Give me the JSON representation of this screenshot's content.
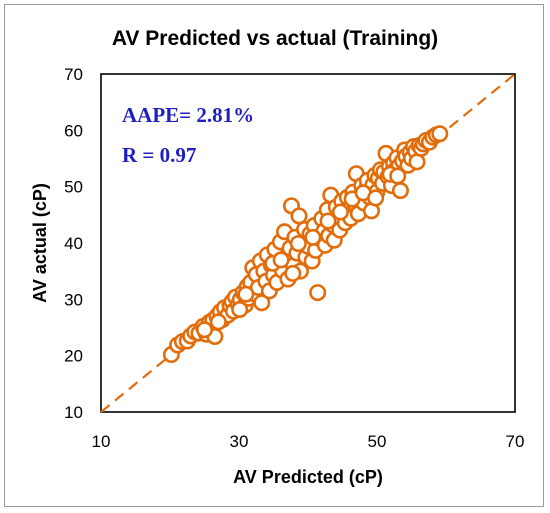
{
  "chart_data": {
    "type": "scatter",
    "title": "AV Predicted vs actual (Training)",
    "xlabel": "AV Predicted (cP)",
    "ylabel": "AV actual (cP)",
    "xlim": [
      10,
      70
    ],
    "ylim": [
      10,
      70
    ],
    "xticks": [
      "10",
      "30",
      "50",
      "70"
    ],
    "yticks": [
      "10",
      "20",
      "30",
      "40",
      "50",
      "60",
      "70"
    ],
    "grid": false,
    "legend": "none",
    "reference_line": {
      "style": "dashed",
      "from": [
        10,
        10
      ],
      "to": [
        70,
        70
      ]
    },
    "annotations": [
      "AAPE= 2.81%",
      "R = 0.97"
    ],
    "colors": {
      "marker": "#e36c0a",
      "annotation": "#1f1fbf",
      "frame": "#000000"
    },
    "points": [
      [
        20.2,
        20.2
      ],
      [
        21.1,
        21.9
      ],
      [
        21.8,
        22.5
      ],
      [
        22.5,
        22.6
      ],
      [
        23.0,
        23.5
      ],
      [
        23.6,
        24.2
      ],
      [
        24.2,
        24.0
      ],
      [
        24.8,
        25.2
      ],
      [
        25.3,
        23.8
      ],
      [
        25.7,
        25.9
      ],
      [
        26.2,
        26.3
      ],
      [
        26.5,
        23.4
      ],
      [
        26.8,
        27.0
      ],
      [
        27.3,
        27.8
      ],
      [
        27.6,
        26.4
      ],
      [
        27.9,
        28.5
      ],
      [
        28.4,
        27.2
      ],
      [
        28.7,
        28.9
      ],
      [
        29.0,
        29.6
      ],
      [
        29.2,
        27.9
      ],
      [
        29.5,
        30.4
      ],
      [
        29.9,
        29.1
      ],
      [
        30.2,
        30.0
      ],
      [
        30.6,
        31.2
      ],
      [
        30.9,
        29.0
      ],
      [
        31.2,
        32.3
      ],
      [
        31.4,
        30.2
      ],
      [
        31.7,
        33.0
      ],
      [
        32.0,
        35.6
      ],
      [
        32.2,
        31.0
      ],
      [
        32.5,
        34.4
      ],
      [
        32.8,
        32.1
      ],
      [
        33.1,
        36.8
      ],
      [
        33.3,
        29.4
      ],
      [
        33.6,
        35.0
      ],
      [
        33.9,
        33.2
      ],
      [
        34.1,
        37.9
      ],
      [
        34.4,
        31.5
      ],
      [
        34.7,
        36.0
      ],
      [
        35.0,
        34.3
      ],
      [
        35.2,
        38.9
      ],
      [
        35.5,
        33.0
      ],
      [
        35.8,
        36.6
      ],
      [
        36.0,
        40.2
      ],
      [
        36.3,
        35.1
      ],
      [
        36.6,
        42.0
      ],
      [
        36.9,
        37.4
      ],
      [
        37.1,
        33.6
      ],
      [
        37.4,
        39.1
      ],
      [
        37.6,
        46.6
      ],
      [
        37.9,
        36.0
      ],
      [
        38.1,
        41.0
      ],
      [
        38.4,
        38.2
      ],
      [
        38.7,
        44.8
      ],
      [
        38.9,
        35.0
      ],
      [
        39.2,
        40.0
      ],
      [
        39.5,
        42.4
      ],
      [
        39.7,
        37.5
      ],
      [
        40.0,
        39.4
      ],
      [
        40.3,
        41.6
      ],
      [
        40.6,
        36.8
      ],
      [
        40.9,
        43.1
      ],
      [
        41.1,
        38.7
      ],
      [
        41.4,
        31.2
      ],
      [
        41.7,
        40.8
      ],
      [
        42.0,
        44.3
      ],
      [
        42.3,
        42.1
      ],
      [
        42.5,
        39.6
      ],
      [
        42.8,
        45.9
      ],
      [
        43.0,
        41.3
      ],
      [
        43.3,
        48.5
      ],
      [
        43.6,
        43.2
      ],
      [
        43.8,
        40.5
      ],
      [
        44.1,
        46.4
      ],
      [
        44.4,
        44.0
      ],
      [
        44.6,
        42.3
      ],
      [
        44.9,
        47.4
      ],
      [
        45.2,
        45.1
      ],
      [
        45.4,
        43.6
      ],
      [
        45.7,
        48.1
      ],
      [
        46.0,
        46.0
      ],
      [
        46.2,
        44.4
      ],
      [
        46.5,
        49.0
      ],
      [
        46.8,
        47.0
      ],
      [
        47.0,
        52.3
      ],
      [
        47.3,
        45.2
      ],
      [
        47.6,
        48.4
      ],
      [
        47.8,
        50.2
      ],
      [
        48.1,
        47.1
      ],
      [
        48.4,
        49.5
      ],
      [
        48.6,
        51.1
      ],
      [
        48.9,
        48.2
      ],
      [
        49.2,
        45.7
      ],
      [
        49.4,
        50.3
      ],
      [
        49.7,
        52.0
      ],
      [
        50.0,
        49.1
      ],
      [
        50.2,
        51.5
      ],
      [
        50.5,
        53.0
      ],
      [
        50.8,
        50.6
      ],
      [
        51.0,
        52.6
      ],
      [
        51.3,
        55.9
      ],
      [
        51.6,
        51.8
      ],
      [
        51.8,
        53.6
      ],
      [
        52.1,
        50.2
      ],
      [
        52.4,
        54.2
      ],
      [
        52.6,
        52.9
      ],
      [
        52.9,
        55.1
      ],
      [
        53.2,
        53.7
      ],
      [
        53.4,
        49.3
      ],
      [
        53.7,
        54.6
      ],
      [
        54.0,
        56.5
      ],
      [
        54.2,
        55.4
      ],
      [
        54.5,
        53.8
      ],
      [
        54.8,
        56.1
      ],
      [
        55.0,
        55.0
      ],
      [
        55.3,
        57.1
      ],
      [
        55.6,
        56.3
      ],
      [
        55.8,
        54.4
      ],
      [
        56.1,
        57.3
      ],
      [
        56.4,
        56.8
      ],
      [
        56.7,
        57.6
      ],
      [
        57.1,
        58.2
      ],
      [
        57.6,
        57.9
      ],
      [
        58.1,
        58.8
      ],
      [
        58.6,
        59.2
      ],
      [
        59.1,
        59.4
      ],
      [
        30.1,
        28.2
      ],
      [
        31.0,
        30.9
      ],
      [
        34.9,
        36.4
      ],
      [
        36.1,
        37.0
      ],
      [
        38.6,
        39.9
      ],
      [
        40.7,
        41.0
      ],
      [
        42.9,
        43.9
      ],
      [
        44.7,
        45.5
      ],
      [
        46.4,
        47.8
      ],
      [
        48.0,
        48.9
      ],
      [
        49.8,
        48.0
      ],
      [
        51.9,
        52.2
      ],
      [
        53.0,
        51.9
      ],
      [
        27.0,
        26.0
      ],
      [
        25.0,
        24.6
      ],
      [
        37.8,
        34.6
      ]
    ]
  }
}
